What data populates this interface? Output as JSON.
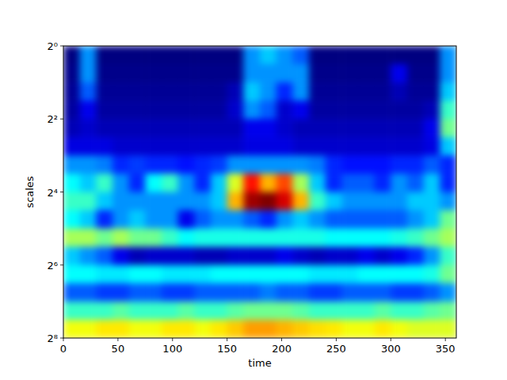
{
  "chart_data": {
    "type": "heatmap",
    "x_label": "time",
    "y_label": "scales",
    "color": "jet",
    "log": "y",
    "xlim": [
      0,
      360
    ],
    "ylim": [
      1,
      256
    ],
    "xticks": [
      0,
      50,
      100,
      150,
      200,
      250,
      300,
      350
    ],
    "yticks": [
      {
        "value": 1,
        "label": "2⁰"
      },
      {
        "value": 4,
        "label": "2²"
      },
      {
        "value": 16,
        "label": "2⁴"
      },
      {
        "value": 64,
        "label": "2⁶"
      },
      {
        "value": 256,
        "label": "2⁸"
      }
    ],
    "x": [
      0,
      15,
      30,
      45,
      60,
      75,
      90,
      105,
      120,
      135,
      150,
      165,
      180,
      195,
      210,
      225,
      240,
      255,
      270,
      285,
      300,
      315,
      330,
      345,
      360
    ],
    "y": [
      1,
      1.41,
      2,
      2.83,
      4,
      5.66,
      8,
      11.3,
      16,
      22.6,
      32,
      45.3,
      64,
      90.5,
      128,
      181,
      256
    ],
    "values": [
      [
        0.05,
        0.3,
        0.05,
        0.05,
        0.05,
        0.05,
        0.05,
        0.05,
        0.05,
        0.05,
        0.05,
        0.3,
        0.35,
        0.3,
        0.25,
        0.05,
        0.05,
        0.05,
        0.05,
        0.05,
        0.05,
        0.05,
        0.05,
        0.3
      ],
      [
        0.06,
        0.3,
        0.06,
        0.06,
        0.06,
        0.06,
        0.06,
        0.06,
        0.06,
        0.06,
        0.06,
        0.3,
        0.3,
        0.3,
        0.3,
        0.06,
        0.06,
        0.06,
        0.06,
        0.06,
        0.15,
        0.06,
        0.06,
        0.3
      ],
      [
        0.07,
        0.25,
        0.07,
        0.07,
        0.07,
        0.07,
        0.07,
        0.07,
        0.07,
        0.07,
        0.1,
        0.35,
        0.3,
        0.2,
        0.3,
        0.07,
        0.07,
        0.07,
        0.07,
        0.07,
        0.1,
        0.07,
        0.07,
        0.35
      ],
      [
        0.08,
        0.15,
        0.08,
        0.08,
        0.08,
        0.08,
        0.08,
        0.08,
        0.08,
        0.08,
        0.12,
        0.3,
        0.25,
        0.12,
        0.15,
        0.08,
        0.08,
        0.08,
        0.08,
        0.08,
        0.08,
        0.08,
        0.1,
        0.45
      ],
      [
        0.1,
        0.12,
        0.1,
        0.1,
        0.1,
        0.1,
        0.1,
        0.1,
        0.1,
        0.1,
        0.1,
        0.15,
        0.15,
        0.12,
        0.1,
        0.1,
        0.1,
        0.1,
        0.1,
        0.1,
        0.1,
        0.1,
        0.15,
        0.5
      ],
      [
        0.14,
        0.14,
        0.14,
        0.12,
        0.12,
        0.12,
        0.12,
        0.12,
        0.12,
        0.12,
        0.12,
        0.14,
        0.14,
        0.14,
        0.12,
        0.12,
        0.12,
        0.12,
        0.12,
        0.12,
        0.12,
        0.12,
        0.14,
        0.35
      ],
      [
        0.3,
        0.3,
        0.28,
        0.2,
        0.22,
        0.2,
        0.2,
        0.18,
        0.2,
        0.22,
        0.3,
        0.3,
        0.3,
        0.3,
        0.3,
        0.28,
        0.2,
        0.18,
        0.18,
        0.18,
        0.2,
        0.2,
        0.25,
        0.2
      ],
      [
        0.4,
        0.35,
        0.45,
        0.3,
        0.2,
        0.4,
        0.45,
        0.3,
        0.2,
        0.35,
        0.6,
        0.85,
        0.7,
        0.8,
        0.55,
        0.35,
        0.2,
        0.25,
        0.25,
        0.2,
        0.3,
        0.25,
        0.35,
        0.2
      ],
      [
        0.45,
        0.45,
        0.35,
        0.3,
        0.3,
        0.3,
        0.3,
        0.3,
        0.3,
        0.35,
        0.7,
        0.95,
        0.98,
        0.9,
        0.7,
        0.45,
        0.35,
        0.3,
        0.3,
        0.3,
        0.3,
        0.35,
        0.35,
        0.3
      ],
      [
        0.4,
        0.35,
        0.2,
        0.3,
        0.35,
        0.3,
        0.3,
        0.15,
        0.25,
        0.3,
        0.3,
        0.25,
        0.2,
        0.3,
        0.35,
        0.3,
        0.25,
        0.25,
        0.25,
        0.25,
        0.25,
        0.3,
        0.35,
        0.5
      ],
      [
        0.55,
        0.55,
        0.5,
        0.55,
        0.5,
        0.5,
        0.45,
        0.4,
        0.42,
        0.42,
        0.42,
        0.42,
        0.42,
        0.42,
        0.42,
        0.42,
        0.4,
        0.4,
        0.4,
        0.4,
        0.42,
        0.45,
        0.5,
        0.55
      ],
      [
        0.35,
        0.3,
        0.25,
        0.15,
        0.1,
        0.12,
        0.12,
        0.12,
        0.1,
        0.1,
        0.12,
        0.12,
        0.12,
        0.15,
        0.12,
        0.1,
        0.12,
        0.12,
        0.15,
        0.12,
        0.15,
        0.2,
        0.3,
        0.45
      ],
      [
        0.4,
        0.4,
        0.38,
        0.38,
        0.4,
        0.4,
        0.38,
        0.38,
        0.38,
        0.4,
        0.4,
        0.4,
        0.4,
        0.4,
        0.4,
        0.38,
        0.38,
        0.38,
        0.4,
        0.4,
        0.4,
        0.4,
        0.42,
        0.5
      ],
      [
        0.25,
        0.25,
        0.22,
        0.22,
        0.25,
        0.25,
        0.22,
        0.22,
        0.25,
        0.25,
        0.25,
        0.25,
        0.28,
        0.25,
        0.25,
        0.22,
        0.22,
        0.25,
        0.25,
        0.25,
        0.22,
        0.22,
        0.25,
        0.3
      ],
      [
        0.45,
        0.45,
        0.45,
        0.48,
        0.45,
        0.45,
        0.45,
        0.48,
        0.45,
        0.45,
        0.48,
        0.5,
        0.5,
        0.5,
        0.48,
        0.45,
        0.45,
        0.45,
        0.45,
        0.48,
        0.45,
        0.45,
        0.48,
        0.5
      ],
      [
        0.62,
        0.62,
        0.65,
        0.65,
        0.62,
        0.62,
        0.65,
        0.65,
        0.62,
        0.65,
        0.68,
        0.72,
        0.72,
        0.7,
        0.68,
        0.66,
        0.65,
        0.62,
        0.62,
        0.65,
        0.62,
        0.6,
        0.6,
        0.6
      ]
    ]
  }
}
